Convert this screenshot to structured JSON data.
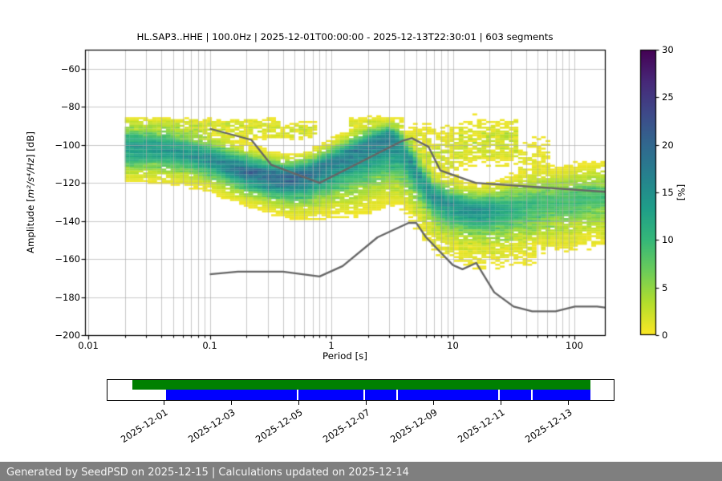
{
  "title": "HL.SAP3..HHE | 100.0Hz | 2025-12-01T00:00:00 - 2025-12-13T22:30:01 | 603 segments",
  "footer": "Generated by SeedPSD on 2025-12-15 | Calculations updated on 2025-12-14",
  "colors": {
    "grid": "#aaaaaa",
    "spine": "#000000",
    "noise_model_line": "#666666",
    "footer_bg": "#7f7f7f",
    "footer_text": "#f5f5f5",
    "archive_bar": "#008000",
    "psd_bar": "#0000ff"
  },
  "chart_data": {
    "type": "heatmap",
    "title": "HL.SAP3..HHE | 100.0Hz | 2025-12-01T00:00:00 - 2025-12-13T22:30:01 | 603 segments",
    "xlabel": "Period [s]",
    "ylabel": "Amplitude [m²/s⁴/Hz] [dB]",
    "ylabel_parts": {
      "prefix": "Amplitude [",
      "math": "m²/s⁴/Hz",
      "suffix": "] [dB]"
    },
    "x_scale": "log",
    "xlim": [
      0.01,
      180
    ],
    "ylim": [
      -200,
      -50
    ],
    "xtick_labels": [
      "0.01",
      "0.1",
      "1",
      "10",
      "100"
    ],
    "xtick_values": [
      0.01,
      0.1,
      1,
      10,
      100
    ],
    "ytick_labels": [
      "−60",
      "−80",
      "−100",
      "−120",
      "−140",
      "−160",
      "−180",
      "−200"
    ],
    "ytick_values": [
      -60,
      -80,
      -100,
      -120,
      -140,
      -160,
      -180,
      -200
    ],
    "grid": true,
    "colorbar": {
      "label": "[%]",
      "tick_labels": [
        "0",
        "5",
        "10",
        "15",
        "20",
        "25",
        "30"
      ],
      "tick_values": [
        0,
        5,
        10,
        15,
        20,
        25,
        30
      ],
      "range": [
        0,
        30
      ],
      "colormap": "viridis_r"
    },
    "histogram": {
      "period_start": 0.02,
      "period_end": 180,
      "octave_fraction": 8,
      "db_bin_width": 1,
      "bands_fields": [
        "period_s",
        "mode_db",
        "peak_probability_pct",
        "sigma_up_db",
        "sigma_down_db"
      ],
      "bands": [
        [
          0.02,
          -102,
          14,
          6,
          7
        ],
        [
          0.03,
          -102,
          14,
          6,
          7
        ],
        [
          0.05,
          -103,
          14,
          6,
          7
        ],
        [
          0.08,
          -105.5,
          15,
          5.5,
          7
        ],
        [
          0.12,
          -109,
          16,
          5.5,
          7
        ],
        [
          0.2,
          -114,
          19,
          5.5,
          7
        ],
        [
          0.3,
          -116.5,
          20,
          5.2,
          7
        ],
        [
          0.45,
          -117.5,
          20,
          5,
          8
        ],
        [
          0.65,
          -115.5,
          19,
          5,
          9
        ],
        [
          1.0,
          -109.5,
          17,
          5,
          11
        ],
        [
          1.5,
          -104,
          17,
          4.8,
          13
        ],
        [
          2.2,
          -99,
          17,
          4.5,
          14
        ],
        [
          3.0,
          -96.5,
          17,
          4.3,
          14
        ],
        [
          3.6,
          -99.5,
          15,
          4.5,
          12
        ],
        [
          4.4,
          -108,
          14,
          5,
          10
        ],
        [
          5.5,
          -118,
          14,
          5,
          9
        ],
        [
          7.0,
          -127,
          15,
          5,
          8
        ],
        [
          9.0,
          -131,
          15,
          5.5,
          8
        ],
        [
          12,
          -133.5,
          15,
          5.5,
          8
        ],
        [
          17,
          -135,
          15,
          5.5,
          8
        ],
        [
          25,
          -134.5,
          12,
          6.5,
          8.5
        ],
        [
          40,
          -132.5,
          10,
          7.5,
          9
        ],
        [
          65,
          -130.5,
          9,
          8,
          9
        ],
        [
          100,
          -129,
          9,
          8,
          9
        ],
        [
          150,
          -128,
          9,
          8,
          9
        ],
        [
          180,
          -127.5,
          9,
          8,
          9
        ]
      ],
      "clouds": [
        {
          "range": [
            0.02,
            0.35
          ],
          "center": -88.5,
          "sigma": 1.5,
          "p": 1.0,
          "relative": false
        },
        {
          "range": [
            0.02,
            0.7
          ],
          "center": -92.5,
          "sigma": 3,
          "p": 1.6,
          "relative": false
        },
        {
          "range": [
            1.3,
            3.8
          ],
          "center": -90,
          "sigma": 3,
          "p": 1.2,
          "relative": false
        },
        {
          "range": [
            4,
            11
          ],
          "center": -104,
          "sigma": 9,
          "p": 1.6,
          "relative": false
        },
        {
          "range": [
            11,
            32
          ],
          "center": -99,
          "sigma": 7,
          "p": 2.2,
          "relative": false
        },
        {
          "range": [
            32,
            60
          ],
          "center": -108,
          "sigma": 8,
          "p": 0.9,
          "relative": false
        },
        {
          "range": [
            3,
            45
          ],
          "center": -18,
          "sigma": 8,
          "p": 1.1,
          "relative": true
        },
        {
          "range": [
            50,
            180
          ],
          "center": -16,
          "sigma": 7,
          "p": 0.8,
          "relative": true
        }
      ]
    },
    "noise_models": {
      "nhnm": [
        [
          0.1,
          -91.5
        ],
        [
          0.22,
          -97.4
        ],
        [
          0.32,
          -110.5
        ],
        [
          0.8,
          -120.0
        ],
        [
          3.8,
          -98.0
        ],
        [
          4.6,
          -96.5
        ],
        [
          6.3,
          -101.0
        ],
        [
          7.9,
          -113.5
        ],
        [
          15.4,
          -120.0
        ],
        [
          354.8,
          -126.0
        ]
      ],
      "nlnm": [
        [
          0.1,
          -168.0
        ],
        [
          0.17,
          -166.7
        ],
        [
          0.4,
          -166.7
        ],
        [
          0.8,
          -169.2
        ],
        [
          1.24,
          -163.7
        ],
        [
          2.4,
          -148.6
        ],
        [
          4.3,
          -141.1
        ],
        [
          5.0,
          -141.1
        ],
        [
          6.0,
          -148.5
        ],
        [
          10.0,
          -163.2
        ],
        [
          12.0,
          -165.4
        ],
        [
          15.6,
          -162.1
        ],
        [
          21.9,
          -177.5
        ],
        [
          31.6,
          -185.0
        ],
        [
          45.0,
          -187.5
        ],
        [
          70.0,
          -187.5
        ],
        [
          101.0,
          -185.0
        ],
        [
          154.0,
          -185.0
        ],
        [
          328.0,
          -187.5
        ]
      ]
    }
  },
  "timeline": {
    "tick_labels": [
      "2025-12-01",
      "2025-12-03",
      "2025-12-05",
      "2025-12-07",
      "2025-12-09",
      "2025-12-11",
      "2025-12-13"
    ],
    "tick_day_offsets": [
      0,
      2,
      4,
      6,
      8,
      10,
      12
    ],
    "axis_span_days": [
      -1.69,
      13.38
    ],
    "bars": [
      {
        "name": "archive-coverage",
        "color": "#008000",
        "start_days": -0.93,
        "end_days": 12.67
      },
      {
        "name": "psd-coverage",
        "color": "#0000ff",
        "start_days": 0.07,
        "end_days": 12.67
      }
    ],
    "gap_day_offsets": [
      3.98,
      5.95,
      6.93,
      9.95,
      10.93
    ]
  }
}
